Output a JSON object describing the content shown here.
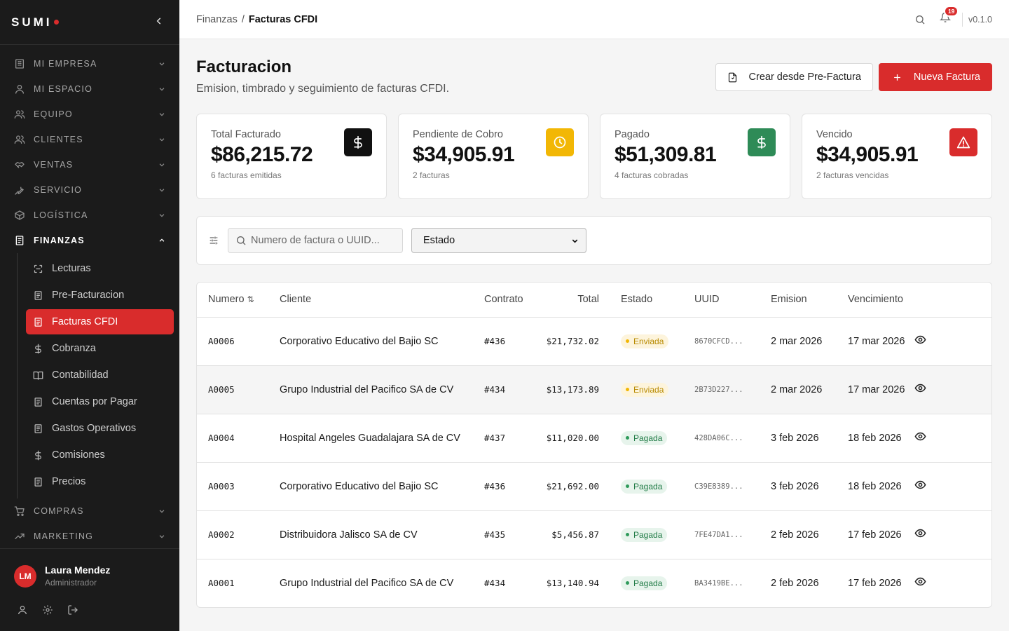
{
  "brand": {
    "name": "SUMI"
  },
  "sidebar": {
    "sections": [
      {
        "label": "MI EMPRESA",
        "icon": "building-icon"
      },
      {
        "label": "MI ESPACIO",
        "icon": "user-icon"
      },
      {
        "label": "EQUIPO",
        "icon": "users-icon"
      },
      {
        "label": "CLIENTES",
        "icon": "users-icon"
      },
      {
        "label": "VENTAS",
        "icon": "handshake-icon"
      },
      {
        "label": "SERVICIO",
        "icon": "wrench-icon"
      },
      {
        "label": "LOGÍSTICA",
        "icon": "box-icon"
      },
      {
        "label": "FINANZAS",
        "icon": "receipt-icon"
      },
      {
        "label": "COMPRAS",
        "icon": "cart-icon"
      },
      {
        "label": "MARKETING",
        "icon": "trend-icon"
      }
    ],
    "finanzas_items": [
      {
        "label": "Lecturas",
        "icon": "scan-icon"
      },
      {
        "label": "Pre-Facturacion",
        "icon": "receipt-icon"
      },
      {
        "label": "Facturas CFDI",
        "icon": "receipt-icon"
      },
      {
        "label": "Cobranza",
        "icon": "dollar-icon"
      },
      {
        "label": "Contabilidad",
        "icon": "book-icon"
      },
      {
        "label": "Cuentas por Pagar",
        "icon": "receipt-icon"
      },
      {
        "label": "Gastos Operativos",
        "icon": "receipt-icon"
      },
      {
        "label": "Comisiones",
        "icon": "dollar-icon"
      },
      {
        "label": "Precios",
        "icon": "receipt-icon"
      }
    ],
    "user": {
      "initials": "LM",
      "name": "Laura Mendez",
      "role": "Administrador"
    }
  },
  "topbar": {
    "breadcrumb": {
      "parent": "Finanzas",
      "separator": "/",
      "current": "Facturas CFDI"
    },
    "notifications": "19",
    "version": "v0.1.0"
  },
  "page": {
    "title": "Facturacion",
    "subtitle": "Emision, timbrado y seguimiento de facturas CFDI.",
    "btn_secondary": "Crear desde Pre-Factura",
    "btn_primary": "Nueva Factura"
  },
  "cards": [
    {
      "label": "Total Facturado",
      "value": "$86,215.72",
      "note": "6 facturas emitidas",
      "icon": "dollar-icon",
      "color": "#111111"
    },
    {
      "label": "Pendiente de Cobro",
      "value": "$34,905.91",
      "note": "2 facturas",
      "icon": "clock-icon",
      "color": "#f2b705"
    },
    {
      "label": "Pagado",
      "value": "$51,309.81",
      "note": "4 facturas cobradas",
      "icon": "dollar-icon",
      "color": "#2e8b57"
    },
    {
      "label": "Vencido",
      "value": "$34,905.91",
      "note": "2 facturas vencidas",
      "icon": "warning-icon",
      "color": "#d92c2c"
    }
  ],
  "filters": {
    "search_placeholder": "Numero de factura o UUID...",
    "status_value": "Estado"
  },
  "table": {
    "headers": {
      "numero": "Numero",
      "cliente": "Cliente",
      "contrato": "Contrato",
      "total": "Total",
      "estado": "Estado",
      "uuid": "UUID",
      "emision": "Emision",
      "vencimiento": "Vencimiento"
    },
    "rows": [
      {
        "numero": "A0006",
        "cliente": "Corporativo Educativo del Bajio SC",
        "contrato": "#436",
        "total": "$21,732.02",
        "estado": "Enviada",
        "uuid": "8670CFCD...",
        "emision": "2 mar 2026",
        "vencimiento": "17 mar 2026"
      },
      {
        "numero": "A0005",
        "cliente": "Grupo Industrial del Pacifico SA de CV",
        "contrato": "#434",
        "total": "$13,173.89",
        "estado": "Enviada",
        "uuid": "2B73D227...",
        "emision": "2 mar 2026",
        "vencimiento": "17 mar 2026"
      },
      {
        "numero": "A0004",
        "cliente": "Hospital Angeles Guadalajara SA de CV",
        "contrato": "#437",
        "total": "$11,020.00",
        "estado": "Pagada",
        "uuid": "428DA06C...",
        "emision": "3 feb 2026",
        "vencimiento": "18 feb 2026"
      },
      {
        "numero": "A0003",
        "cliente": "Corporativo Educativo del Bajio SC",
        "contrato": "#436",
        "total": "$21,692.00",
        "estado": "Pagada",
        "uuid": "C39E8389...",
        "emision": "3 feb 2026",
        "vencimiento": "18 feb 2026"
      },
      {
        "numero": "A0002",
        "cliente": "Distribuidora Jalisco SA de CV",
        "contrato": "#435",
        "total": "$5,456.87",
        "estado": "Pagada",
        "uuid": "7FE47DA1...",
        "emision": "2 feb 2026",
        "vencimiento": "17 feb 2026"
      },
      {
        "numero": "A0001",
        "cliente": "Grupo Industrial del Pacifico SA de CV",
        "contrato": "#434",
        "total": "$13,140.94",
        "estado": "Pagada",
        "uuid": "BA3419BE...",
        "emision": "2 feb 2026",
        "vencimiento": "17 feb 2026"
      }
    ]
  },
  "status_colors": {
    "Enviada": {
      "bg": "#fdf4dc",
      "fg": "#b88a00",
      "dot": "#f2b705"
    },
    "Pagada": {
      "bg": "#e7f4ec",
      "fg": "#1f7a45",
      "dot": "#2e9a5a"
    }
  }
}
